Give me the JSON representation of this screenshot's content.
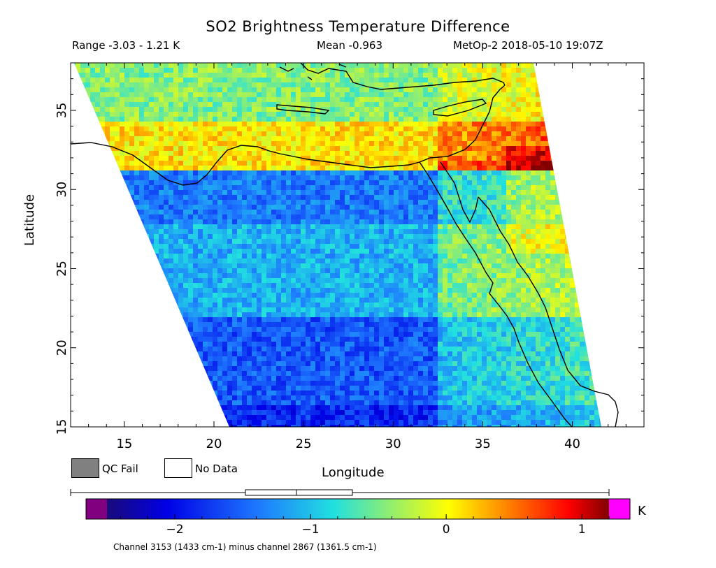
{
  "header": {
    "title": "SO2 Brightness Temperature Difference",
    "range": "Range -3.03 - 1.21 K",
    "mean": "Mean -0.963",
    "satellite_time": "MetOp-2 2018-05-10 19:07Z"
  },
  "map": {
    "x_axis_label": "Longitude",
    "y_axis_label": "Latitude",
    "lon_range": [
      12,
      44
    ],
    "lat_range": [
      15,
      38
    ],
    "x_ticks": [
      "15",
      "20",
      "25",
      "30",
      "35",
      "40"
    ],
    "y_ticks": [
      "15",
      "20",
      "25",
      "30",
      "35"
    ],
    "x_tick_values": [
      15,
      20,
      25,
      30,
      35,
      40
    ],
    "y_tick_values": [
      15,
      20,
      25,
      30,
      35
    ]
  },
  "legend": {
    "qc_fail": "QC Fail",
    "no_data": "No Data",
    "qc_fail_color": "#808080",
    "no_data_color": "#ffffff"
  },
  "colorbar": {
    "units": "K",
    "ticks": [
      "-2",
      "-1",
      "0",
      "1"
    ],
    "tick_values": [
      -2,
      -1,
      0,
      1
    ],
    "vmin": -2.5,
    "vmax": 1.2,
    "underflow_color": "#800080",
    "overflow_color": "#ff00ff",
    "footnote": "Channel 3153 (1433 cm-1) minus channel 2867 (1361.5 cm-1)"
  }
}
